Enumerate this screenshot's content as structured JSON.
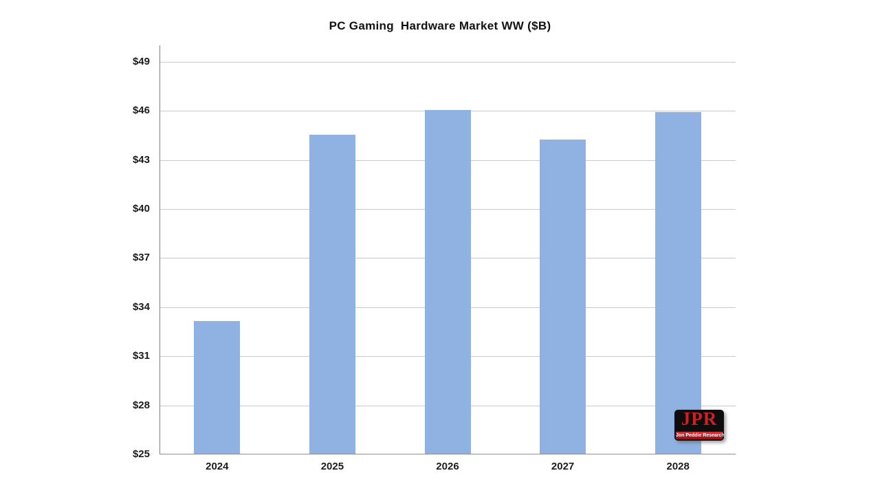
{
  "chart_data": {
    "type": "bar",
    "title": "PC Gaming  Hardware Market WW ($B)",
    "categories": [
      "2024",
      "2025",
      "2026",
      "2027",
      "2028"
    ],
    "values": [
      33.1,
      44.5,
      46.0,
      44.2,
      45.9
    ],
    "xlabel": "",
    "ylabel": "",
    "ylim": [
      25,
      50
    ],
    "yticks": [
      25,
      28,
      31,
      34,
      37,
      40,
      43,
      46,
      49
    ],
    "ytick_prefix": "$",
    "grid": true,
    "legend_position": "none",
    "bar_color": "#8fb2e3",
    "gridline_color": "#c9c9c9",
    "axis_color": "#7f7f7f"
  },
  "logo": {
    "text": "JPR",
    "subtext": "Jon Peddie Research",
    "bg_color": "#0e0c0d",
    "accent_color": "#c1121c",
    "text_color": "#cf2026"
  }
}
